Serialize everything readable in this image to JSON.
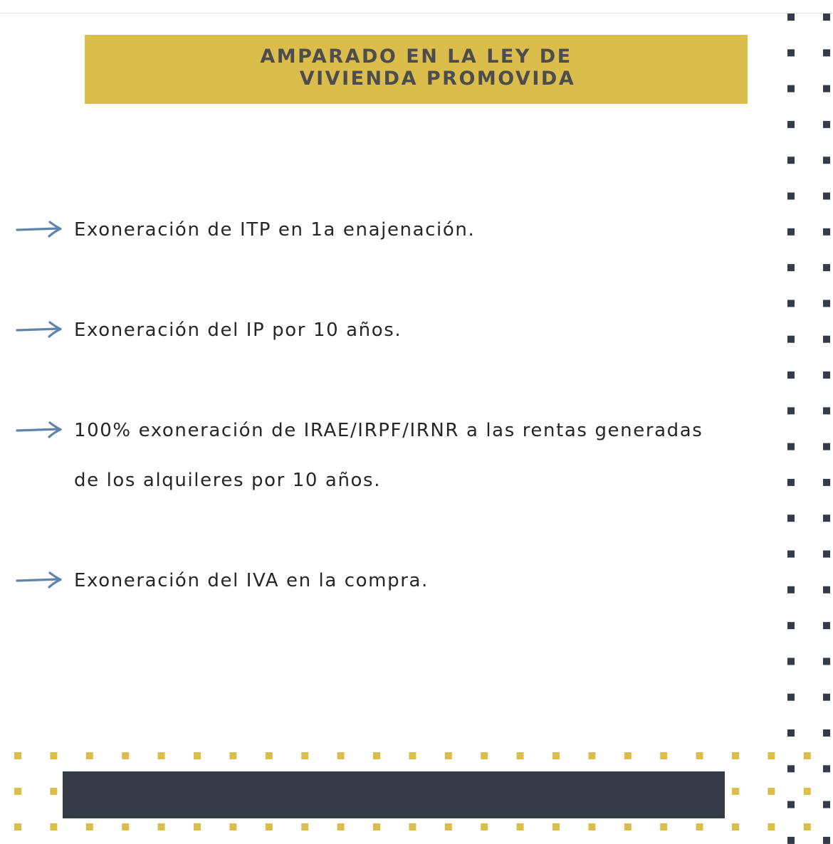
{
  "banner": {
    "line1": "AMPARADO EN LA LEY DE",
    "line2": "VIVIENDA PROMOVIDA"
  },
  "items": [
    {
      "text": "Exoneración de ITP en 1a enajenación."
    },
    {
      "text": "Exoneración del IP por 10 años."
    },
    {
      "text_line1": "100% exoneración de IRAE/IRPF/IRNR a las rentas generadas",
      "text_line2": "de los alquileres por 10 años."
    },
    {
      "text": "Exoneración del IVA en la compra."
    }
  ],
  "icons": {
    "bullet": "arrow-right-icon"
  },
  "colors": {
    "banner": "#dbbd4c",
    "banner_text": "#4d4d4d",
    "arrow": "#5f85ad",
    "text": "#262626",
    "dark_dots": "#353c47",
    "gold_dots": "#dbbd4c",
    "footer_bar": "#353c47"
  }
}
